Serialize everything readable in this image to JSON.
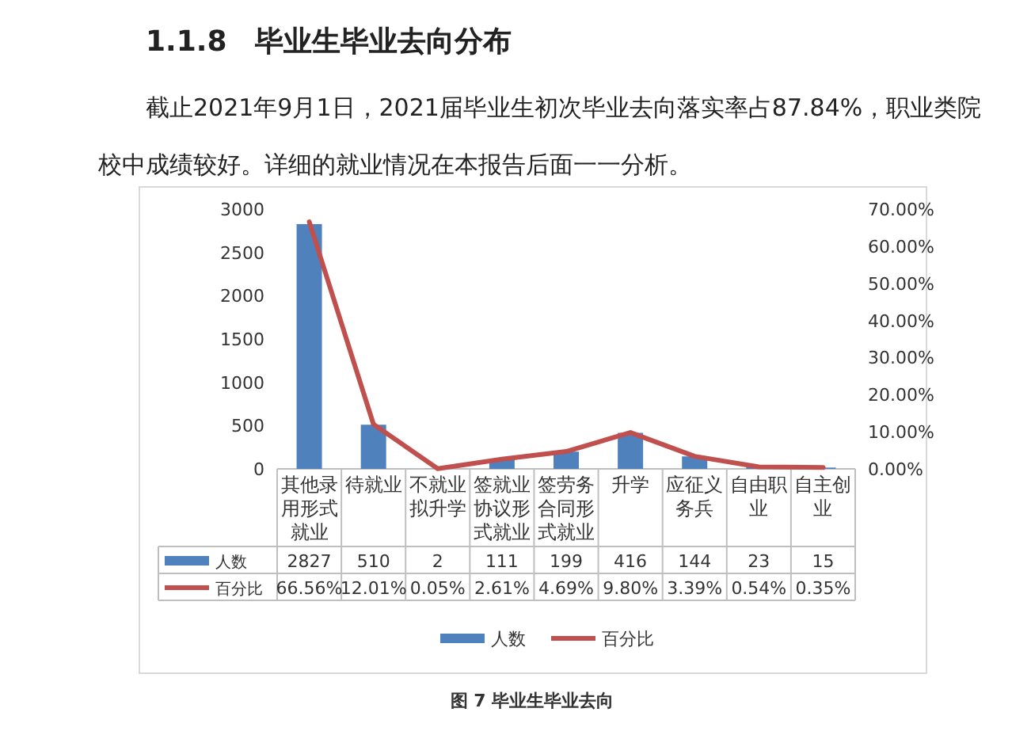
{
  "chart_data": {
    "type": "bar",
    "title": "1.1.8　毕业生毕业去向分布",
    "subtitle": "截止2021年9月1日，2021届毕业生初次毕业去向落实率占87.84%，职业类院校中成绩较好。详细的就业情况在本报告后面一一分析。",
    "annotations": [
      "图 7 毕业生毕业去向"
    ],
    "categories": [
      "其他录用形式就业",
      "待就业",
      "不就业拟升学",
      "签就业协议形式就业",
      "签劳务合同形式就业",
      "升学",
      "应征义务兵",
      "自由职业",
      "自主创业"
    ],
    "series": [
      {
        "name": "人数",
        "color": "#4f81bd",
        "values": [
          2827,
          510,
          2,
          111,
          199,
          416,
          144,
          23,
          15
        ],
        "value_labels": [
          "2827",
          "510",
          "2",
          "111",
          "199",
          "416",
          "144",
          "23",
          "15"
        ]
      },
      {
        "name": "百分比",
        "type": "line",
        "axis": "y2",
        "color": "#c0504d",
        "values": [
          66.56,
          12.01,
          0.05,
          2.61,
          4.69,
          9.8,
          3.39,
          0.54,
          0.35
        ],
        "value_labels": [
          "66.56%",
          "12.01%",
          "0.05%",
          "2.61%",
          "4.69%",
          "9.80%",
          "3.39%",
          "0.54%",
          "0.35%"
        ]
      }
    ],
    "ylim": [
      0,
      3000
    ],
    "yticks": [
      0,
      500,
      1000,
      1500,
      2000,
      2500,
      3000
    ],
    "y2lim": [
      0,
      70
    ],
    "y2ticks": [
      {
        "value": 0,
        "label": "0.00%"
      },
      {
        "value": 10,
        "label": "10.00%"
      },
      {
        "value": 20,
        "label": "20.00%"
      },
      {
        "value": 30,
        "label": "30.00%"
      },
      {
        "value": 40,
        "label": "40.00%"
      },
      {
        "value": 50,
        "label": "50.00%"
      },
      {
        "value": 60,
        "label": "60.00%"
      },
      {
        "value": 70,
        "label": "70.00%"
      }
    ],
    "legend": "bottom"
  }
}
